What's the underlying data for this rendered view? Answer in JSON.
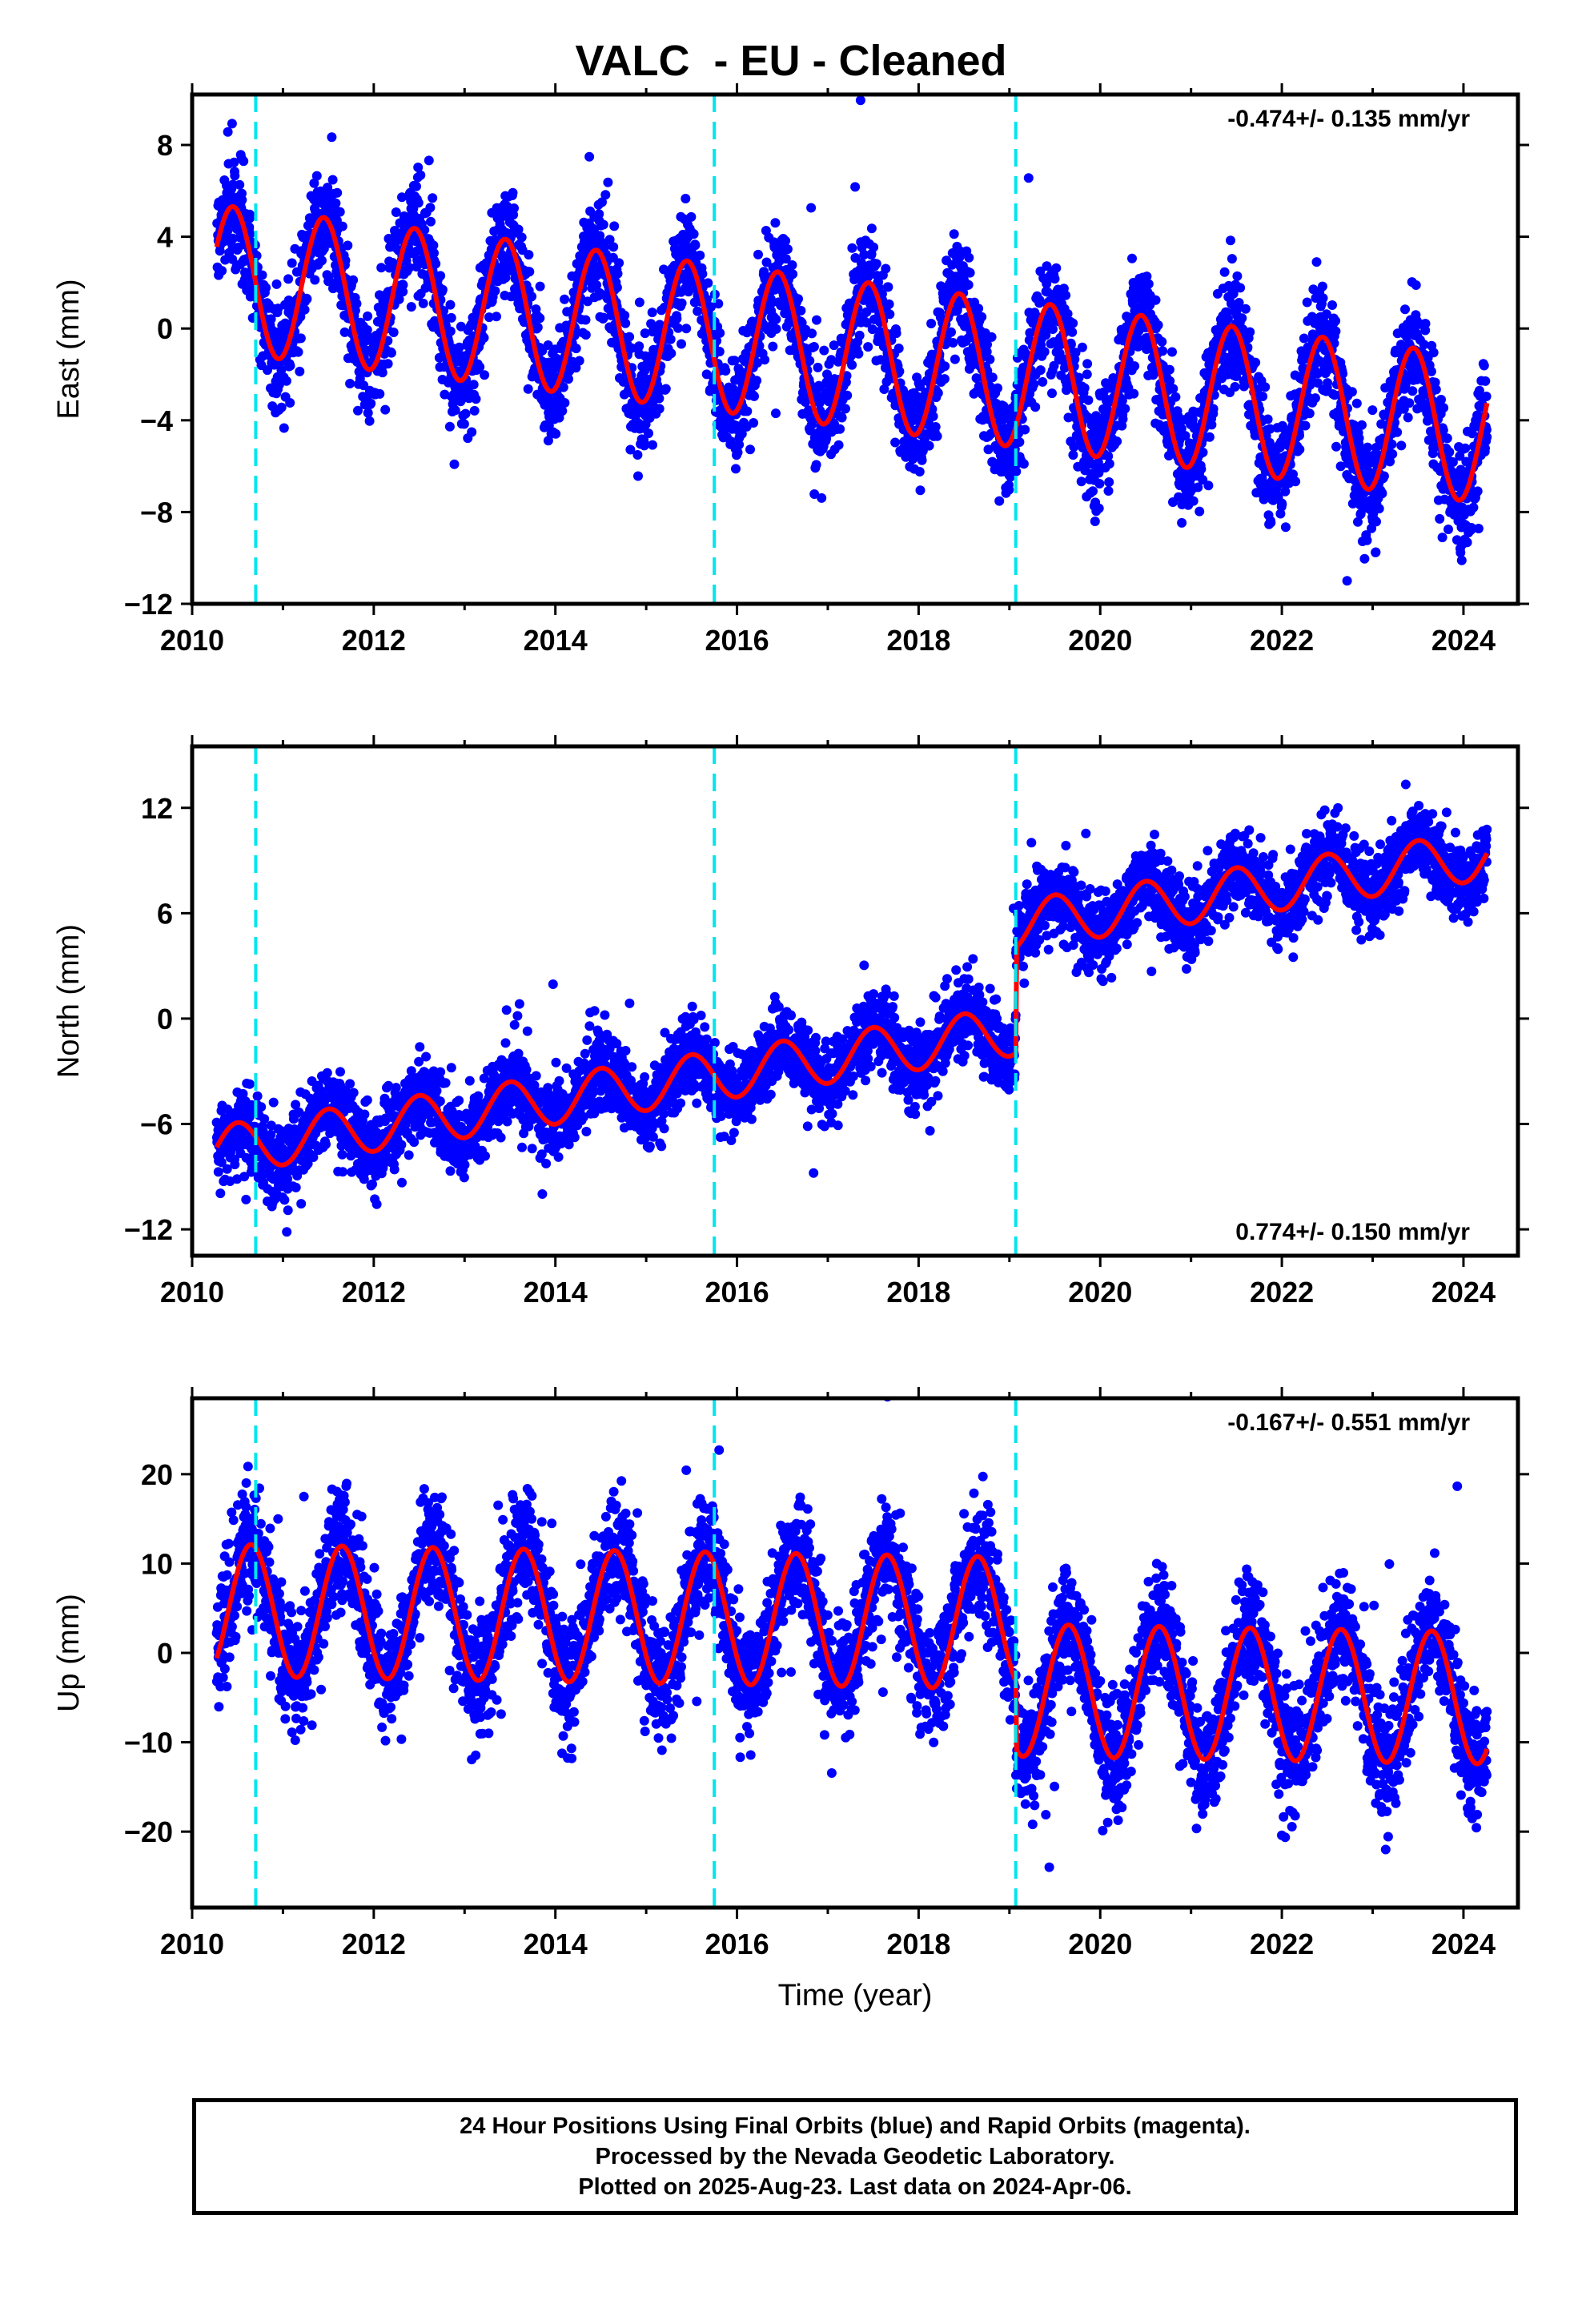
{
  "title": "VALC  - EU - Cleaned",
  "caption": {
    "line1": "24 Hour Positions Using Final Orbits (blue) and Rapid Orbits (magenta).",
    "line2": "Processed by the Nevada Geodetic Laboratory.",
    "line3": "Plotted on 2025-Aug-23. Last data on 2024-Apr-06."
  },
  "colors": {
    "final_orbits": "#0000ff",
    "model_fit": "#ff0000",
    "offset_lines": "#00e5ee",
    "frame": "#000000"
  },
  "chart_data": [
    {
      "type": "scatter",
      "component": "East",
      "ylabel": "East (mm)",
      "xlabel": "",
      "rate_annotation": "-0.474+/- 0.135 mm/yr",
      "annotation_position": "top-right",
      "xlim": [
        2010.0,
        2024.6
      ],
      "ylim": [
        -12,
        10.2
      ],
      "xticks": [
        2010,
        2012,
        2014,
        2016,
        2018,
        2020,
        2022,
        2024
      ],
      "yticks": [
        -12,
        -8,
        -4,
        0,
        4,
        8
      ],
      "offset_epochs": [
        2010.7,
        2015.75,
        2019.07
      ],
      "series": [
        {
          "name": "Final Orbits",
          "role": "daily-positions",
          "start": 2010.27,
          "end": 2024.26,
          "trend_start": 2.2,
          "rate_mm_per_yr": -0.474,
          "annual_amplitude": 3.2,
          "annual_peak": 0.45,
          "noise_sd": 1.15,
          "steps": []
        },
        {
          "role": "model-fit",
          "start": 2010.27,
          "end": 2024.26,
          "trend_start": 2.2,
          "rate_mm_per_yr": -0.474,
          "annual_amplitude": 3.2,
          "annual_peak": 0.45,
          "steps": []
        }
      ]
    },
    {
      "type": "scatter",
      "component": "North",
      "ylabel": "North (mm)",
      "xlabel": "",
      "rate_annotation": "0.774+/- 0.150 mm/yr",
      "annotation_position": "bottom-right",
      "xlim": [
        2010.0,
        2024.6
      ],
      "ylim": [
        -13.5,
        15.5
      ],
      "xticks": [
        2010,
        2012,
        2014,
        2016,
        2018,
        2020,
        2022,
        2024
      ],
      "yticks": [
        -12,
        -6,
        0,
        6,
        12
      ],
      "offset_epochs": [
        2010.7,
        2015.75,
        2019.07
      ],
      "series": [
        {
          "name": "Final Orbits",
          "role": "daily-positions",
          "start": 2010.27,
          "end": 2024.26,
          "trend_start": -7.5,
          "rate_mm_per_yr": 0.774,
          "annual_amplitude": 1.4,
          "annual_peak": 0.5,
          "noise_sd": 1.1,
          "steps": [
            {
              "epoch": 2019.07,
              "size": 6.0
            }
          ]
        },
        {
          "role": "model-fit",
          "start": 2010.27,
          "end": 2024.26,
          "trend_start": -7.5,
          "rate_mm_per_yr": 0.774,
          "annual_amplitude": 1.4,
          "annual_peak": 0.5,
          "steps": [
            {
              "epoch": 2019.07,
              "size": 6.0
            }
          ]
        }
      ]
    },
    {
      "type": "scatter",
      "component": "Up",
      "ylabel": "Up (mm)",
      "xlabel": "Time (year)",
      "rate_annotation": "-0.167+/- 0.551 mm/yr",
      "annotation_position": "top-right",
      "xlim": [
        2010.0,
        2024.6
      ],
      "ylim": [
        -28.5,
        28.5
      ],
      "xticks": [
        2010,
        2012,
        2014,
        2016,
        2018,
        2020,
        2022,
        2024
      ],
      "yticks": [
        -20,
        -10,
        0,
        10,
        20
      ],
      "offset_epochs": [
        2010.7,
        2015.75,
        2019.07
      ],
      "series": [
        {
          "name": "Final Orbits",
          "role": "daily-positions",
          "start": 2010.27,
          "end": 2024.26,
          "trend_start": 4.8,
          "rate_mm_per_yr": -0.167,
          "annual_amplitude": 7.4,
          "annual_peak": 0.65,
          "noise_sd": 3.2,
          "steps": [
            {
              "epoch": 2019.07,
              "size": -7.5
            }
          ]
        },
        {
          "role": "model-fit",
          "start": 2010.27,
          "end": 2024.26,
          "trend_start": 4.8,
          "rate_mm_per_yr": -0.167,
          "annual_amplitude": 7.4,
          "annual_peak": 0.65,
          "steps": [
            {
              "epoch": 2019.07,
              "size": -7.5
            }
          ]
        }
      ]
    }
  ]
}
